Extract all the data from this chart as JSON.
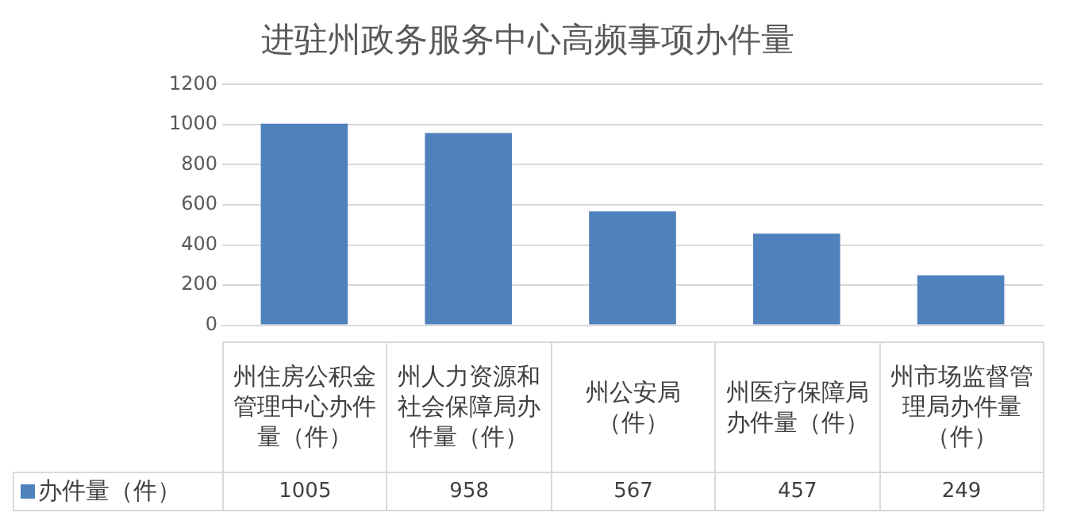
{
  "chart_data": {
    "type": "bar",
    "title": "进驻州政务服务中心高频事项办件量",
    "categories": [
      "州住房公积金管理中心办件量（件）",
      "州人力资源和社会保障局办件量（件）",
      "州公安局（件）",
      "州医疗保障局办件量（件）",
      "州市场监督管理局办件量（件）"
    ],
    "series": [
      {
        "name": "办件量（件）",
        "color": "#4f81bd",
        "values": [
          1005,
          958,
          567,
          457,
          249
        ]
      }
    ],
    "ylim": [
      0,
      1200
    ],
    "yticks": [
      0,
      200,
      400,
      600,
      800,
      1000,
      1200
    ],
    "grid": "y",
    "legend": "bottom",
    "data_labels": true
  }
}
